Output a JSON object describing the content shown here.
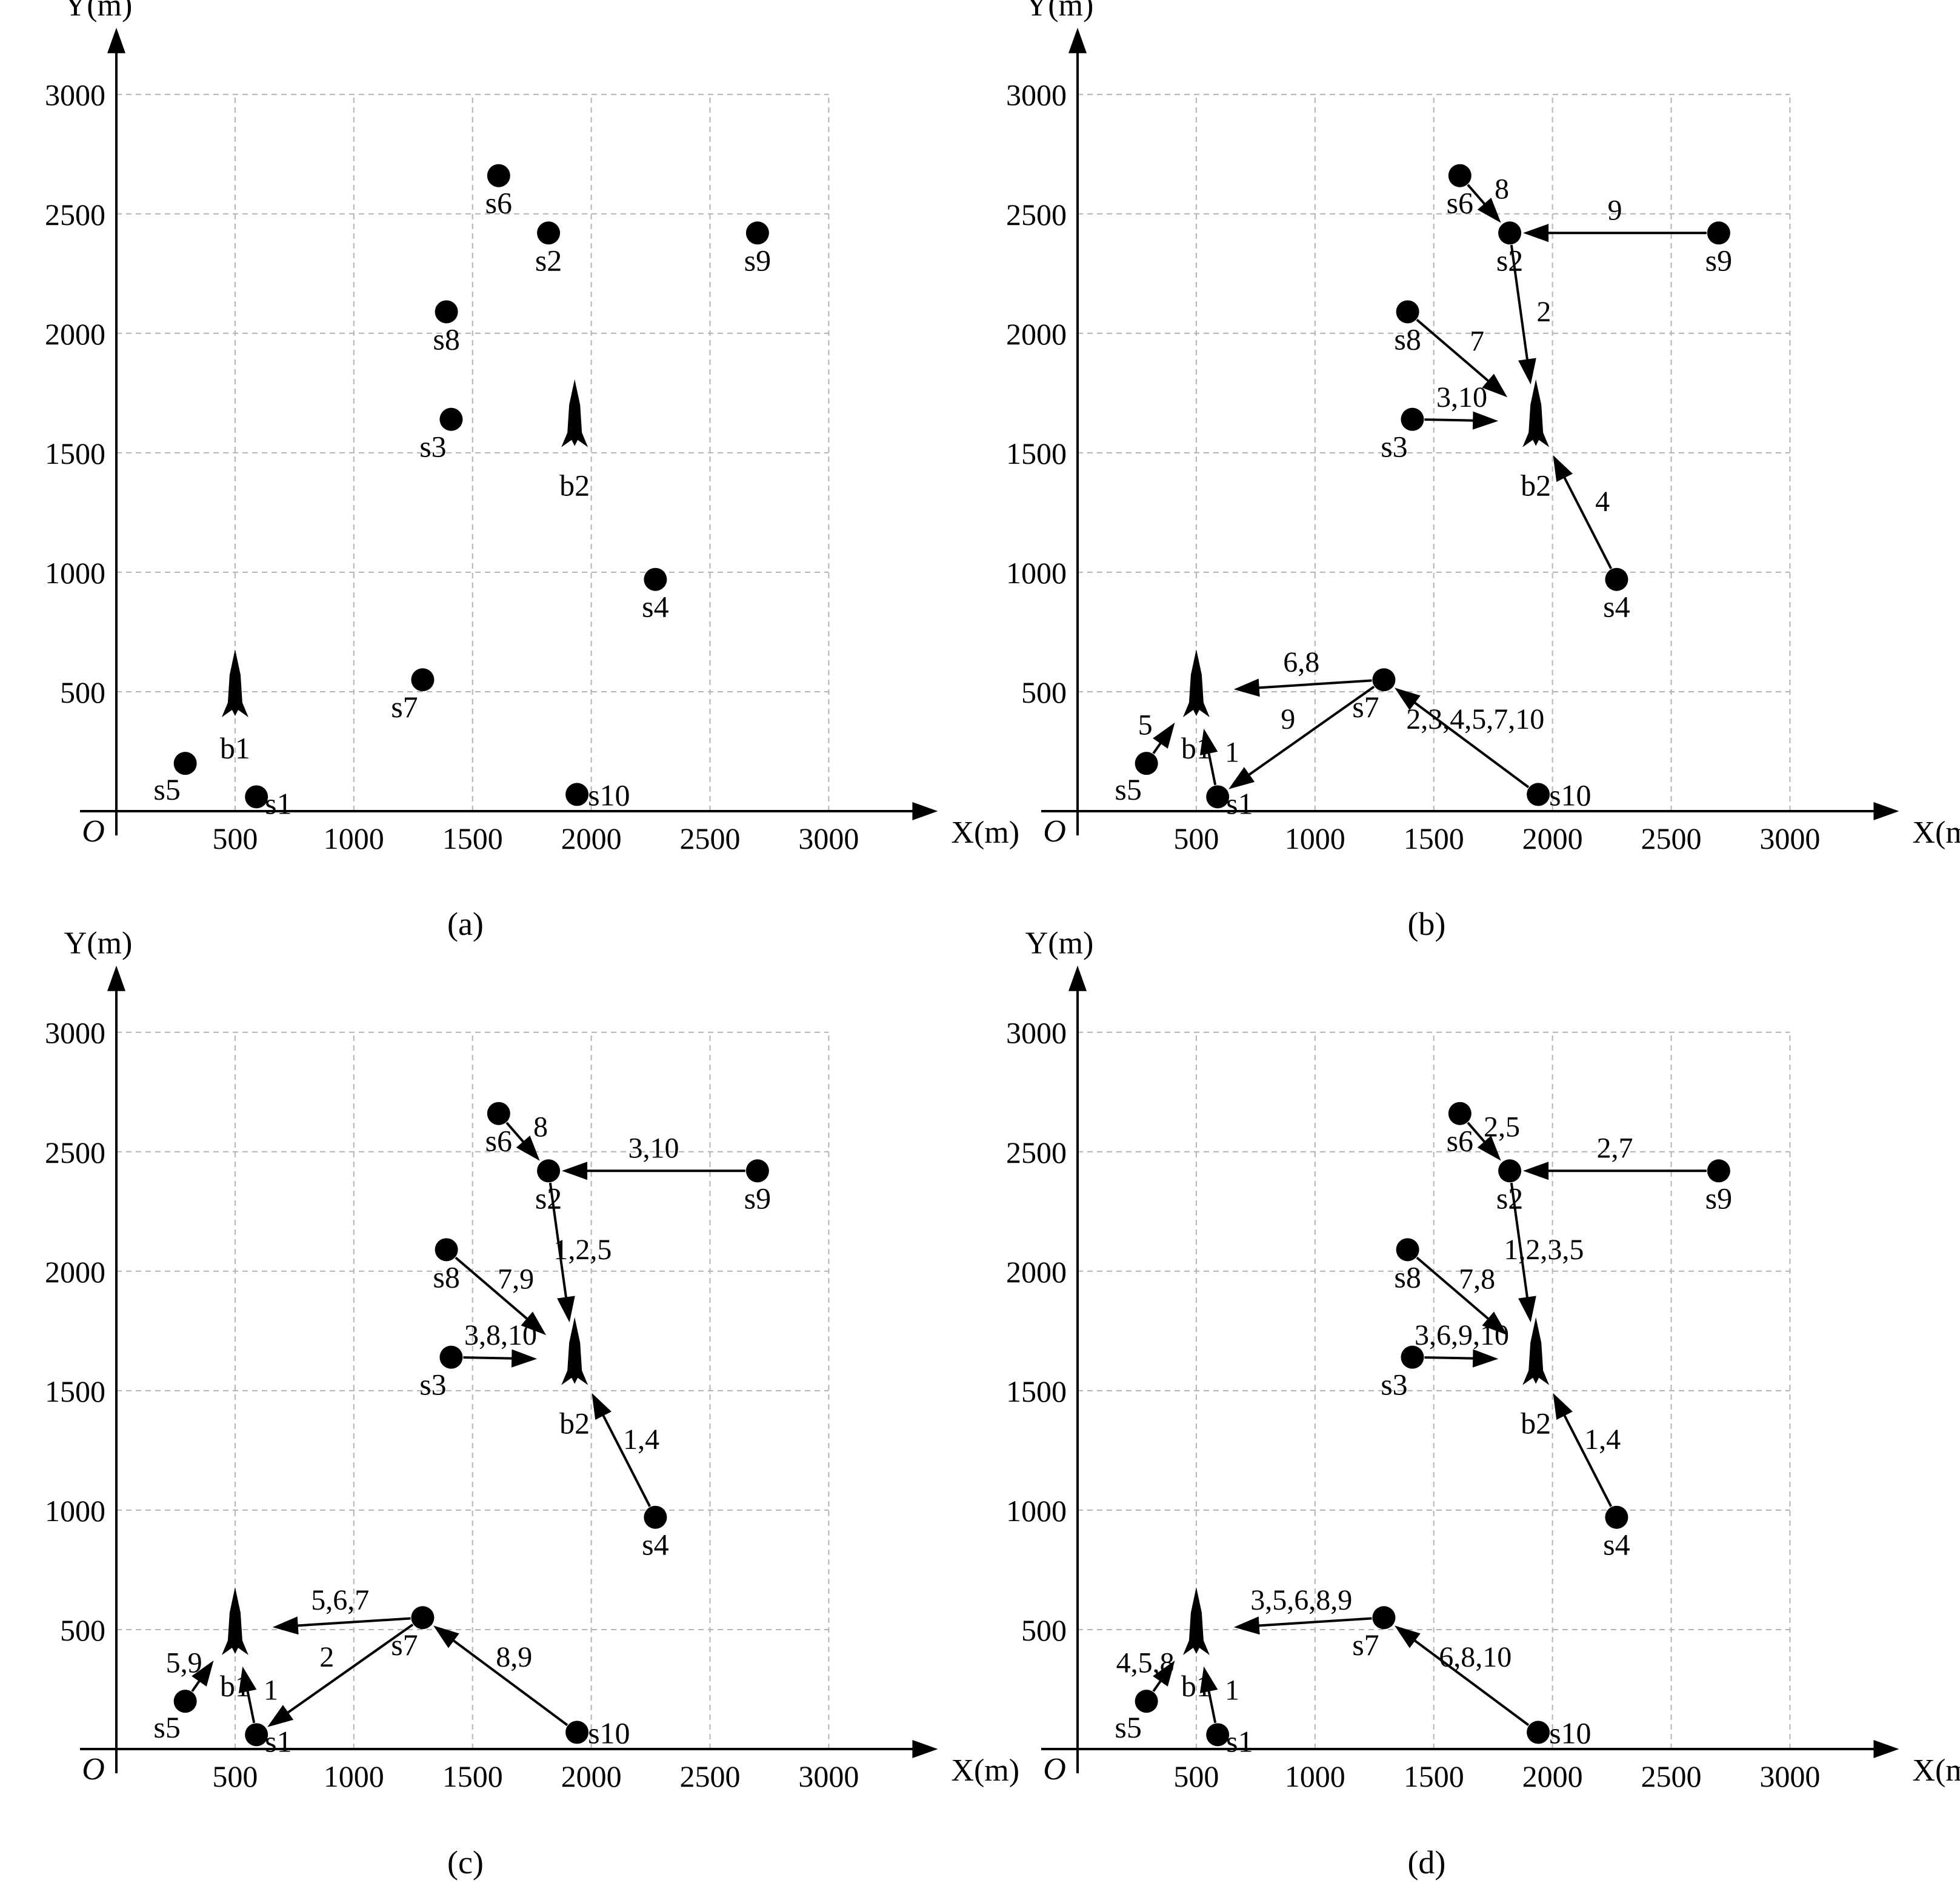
{
  "chart_data": [
    {
      "type": "network-scatter",
      "panel": "(a)",
      "caption": "(a)",
      "xlabel": "X(m)",
      "ylabel": "Y(m)",
      "origin_label": "O",
      "xlim": [
        0,
        3000
      ],
      "ylim": [
        0,
        3000
      ],
      "xticks": [
        "500",
        "1000",
        "1500",
        "2000",
        "2500",
        "3000"
      ],
      "yticks": [
        "500",
        "1000",
        "1500",
        "2000",
        "2500",
        "3000"
      ],
      "grid": true,
      "base_stations": [
        {
          "name": "b1",
          "x": 500,
          "y": 500
        },
        {
          "name": "b2",
          "x": 1930,
          "y": 1630
        }
      ],
      "sensors": [
        {
          "name": "s1",
          "x": 590,
          "y": 60
        },
        {
          "name": "s2",
          "x": 1820,
          "y": 2420
        },
        {
          "name": "s3",
          "x": 1410,
          "y": 1640
        },
        {
          "name": "s4",
          "x": 2270,
          "y": 970
        },
        {
          "name": "s5",
          "x": 290,
          "y": 200
        },
        {
          "name": "s6",
          "x": 1610,
          "y": 2660
        },
        {
          "name": "s7",
          "x": 1290,
          "y": 550
        },
        {
          "name": "s8",
          "x": 1390,
          "y": 2090
        },
        {
          "name": "s9",
          "x": 2700,
          "y": 2420
        },
        {
          "name": "s10",
          "x": 1940,
          "y": 70
        }
      ],
      "edges": []
    },
    {
      "type": "network-scatter",
      "panel": "(b)",
      "caption": "(b)",
      "xlabel": "X(m)",
      "ylabel": "Y(m)",
      "origin_label": "O",
      "xlim": [
        0,
        3000
      ],
      "ylim": [
        0,
        3000
      ],
      "xticks": [
        "500",
        "1000",
        "1500",
        "2000",
        "2500",
        "3000"
      ],
      "yticks": [
        "500",
        "1000",
        "1500",
        "2000",
        "2500",
        "3000"
      ],
      "grid": true,
      "base_stations": [
        {
          "name": "b1",
          "x": 500,
          "y": 500
        },
        {
          "name": "b2",
          "x": 1930,
          "y": 1630
        }
      ],
      "sensors": [
        {
          "name": "s1",
          "x": 590,
          "y": 60
        },
        {
          "name": "s2",
          "x": 1820,
          "y": 2420
        },
        {
          "name": "s3",
          "x": 1410,
          "y": 1640
        },
        {
          "name": "s4",
          "x": 2270,
          "y": 970
        },
        {
          "name": "s5",
          "x": 290,
          "y": 200
        },
        {
          "name": "s6",
          "x": 1610,
          "y": 2660
        },
        {
          "name": "s7",
          "x": 1290,
          "y": 550
        },
        {
          "name": "s8",
          "x": 1390,
          "y": 2090
        },
        {
          "name": "s9",
          "x": 2700,
          "y": 2420
        },
        {
          "name": "s10",
          "x": 1940,
          "y": 70
        }
      ],
      "edges": [
        {
          "from": "s6",
          "to": "s2",
          "label": "8"
        },
        {
          "from": "s9",
          "to": "s2",
          "label": "9"
        },
        {
          "from": "s2",
          "to": "b2",
          "label": "2"
        },
        {
          "from": "s8",
          "to": "b2",
          "label": "7"
        },
        {
          "from": "s3",
          "to": "b2",
          "label": "3,10"
        },
        {
          "from": "s4",
          "to": "b2",
          "label": "4"
        },
        {
          "from": "s7",
          "to": "b1",
          "label": "6,8"
        },
        {
          "from": "s10",
          "to": "s7",
          "label": "2,3,4,5,7,10"
        },
        {
          "from": "s7",
          "to": "s1",
          "label": "9"
        },
        {
          "from": "s5",
          "to": "b1",
          "label": "5"
        },
        {
          "from": "s1",
          "to": "b1",
          "label": "1"
        }
      ]
    },
    {
      "type": "network-scatter",
      "panel": "(c)",
      "caption": "(c)",
      "xlabel": "X(m)",
      "ylabel": "Y(m)",
      "origin_label": "O",
      "xlim": [
        0,
        3000
      ],
      "ylim": [
        0,
        3000
      ],
      "xticks": [
        "500",
        "1000",
        "1500",
        "2000",
        "2500",
        "3000"
      ],
      "yticks": [
        "500",
        "1000",
        "1500",
        "2000",
        "2500",
        "3000"
      ],
      "grid": true,
      "base_stations": [
        {
          "name": "b1",
          "x": 500,
          "y": 500
        },
        {
          "name": "b2",
          "x": 1930,
          "y": 1630
        }
      ],
      "sensors": [
        {
          "name": "s1",
          "x": 590,
          "y": 60
        },
        {
          "name": "s2",
          "x": 1820,
          "y": 2420
        },
        {
          "name": "s3",
          "x": 1410,
          "y": 1640
        },
        {
          "name": "s4",
          "x": 2270,
          "y": 970
        },
        {
          "name": "s5",
          "x": 290,
          "y": 200
        },
        {
          "name": "s6",
          "x": 1610,
          "y": 2660
        },
        {
          "name": "s7",
          "x": 1290,
          "y": 550
        },
        {
          "name": "s8",
          "x": 1390,
          "y": 2090
        },
        {
          "name": "s9",
          "x": 2700,
          "y": 2420
        },
        {
          "name": "s10",
          "x": 1940,
          "y": 70
        }
      ],
      "edges": [
        {
          "from": "s6",
          "to": "s2",
          "label": "8"
        },
        {
          "from": "s9",
          "to": "s2",
          "label": "3,10"
        },
        {
          "from": "s2",
          "to": "b2",
          "label": "1,2,5"
        },
        {
          "from": "s8",
          "to": "b2",
          "label": "7,9"
        },
        {
          "from": "s3",
          "to": "b2",
          "label": "3,8,10"
        },
        {
          "from": "s4",
          "to": "b2",
          "label": "1,4"
        },
        {
          "from": "s7",
          "to": "b1",
          "label": "5,6,7"
        },
        {
          "from": "s10",
          "to": "s7",
          "label": "8,9"
        },
        {
          "from": "s7",
          "to": "s1",
          "label": "2"
        },
        {
          "from": "s5",
          "to": "b1",
          "label": "5,9"
        },
        {
          "from": "s1",
          "to": "b1",
          "label": "1"
        }
      ]
    },
    {
      "type": "network-scatter",
      "panel": "(d)",
      "caption": "(d)",
      "xlabel": "X(m)",
      "ylabel": "Y(m)",
      "origin_label": "O",
      "xlim": [
        0,
        3000
      ],
      "ylim": [
        0,
        3000
      ],
      "xticks": [
        "500",
        "1000",
        "1500",
        "2000",
        "2500",
        "3000"
      ],
      "yticks": [
        "500",
        "1000",
        "1500",
        "2000",
        "2500",
        "3000"
      ],
      "grid": true,
      "base_stations": [
        {
          "name": "b1",
          "x": 500,
          "y": 500
        },
        {
          "name": "b2",
          "x": 1930,
          "y": 1630
        }
      ],
      "sensors": [
        {
          "name": "s1",
          "x": 590,
          "y": 60
        },
        {
          "name": "s2",
          "x": 1820,
          "y": 2420
        },
        {
          "name": "s3",
          "x": 1410,
          "y": 1640
        },
        {
          "name": "s4",
          "x": 2270,
          "y": 970
        },
        {
          "name": "s5",
          "x": 290,
          "y": 200
        },
        {
          "name": "s6",
          "x": 1610,
          "y": 2660
        },
        {
          "name": "s7",
          "x": 1290,
          "y": 550
        },
        {
          "name": "s8",
          "x": 1390,
          "y": 2090
        },
        {
          "name": "s9",
          "x": 2700,
          "y": 2420
        },
        {
          "name": "s10",
          "x": 1940,
          "y": 70
        }
      ],
      "edges": [
        {
          "from": "s6",
          "to": "s2",
          "label": "2,5"
        },
        {
          "from": "s9",
          "to": "s2",
          "label": "2,7"
        },
        {
          "from": "s2",
          "to": "b2",
          "label": "1,2,3,5"
        },
        {
          "from": "s8",
          "to": "b2",
          "label": "7,8"
        },
        {
          "from": "s3",
          "to": "b2",
          "label": "3,6,9,10"
        },
        {
          "from": "s4",
          "to": "b2",
          "label": "1,4"
        },
        {
          "from": "s7",
          "to": "b1",
          "label": "3,5,6,8,9"
        },
        {
          "from": "s10",
          "to": "s7",
          "label": "6,8,10"
        },
        {
          "from": "s5",
          "to": "b1",
          "label": "4,5,8"
        },
        {
          "from": "s1",
          "to": "b1",
          "label": "1"
        }
      ]
    }
  ]
}
